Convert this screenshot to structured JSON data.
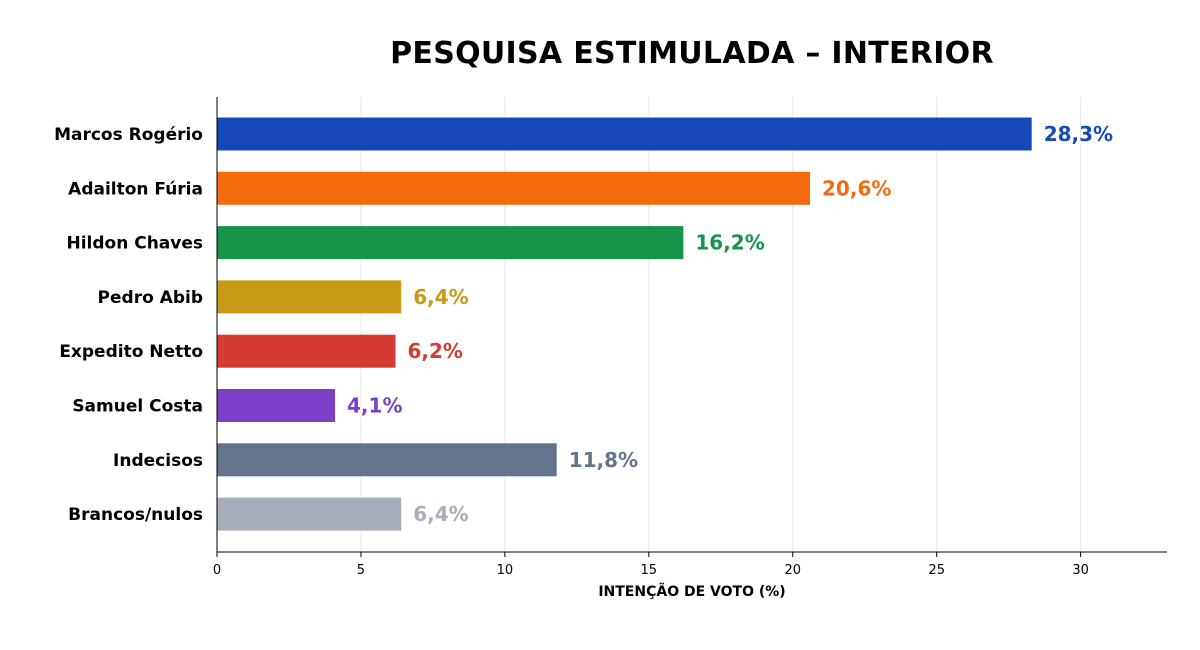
{
  "chart_data": {
    "type": "bar",
    "orientation": "horizontal",
    "title": "PESQUISA ESTIMULADA – INTERIOR",
    "xlabel": "INTENÇÃO DE VOTO (%)",
    "ylabel": "",
    "xlim": [
      0,
      33
    ],
    "xticks": [
      0,
      5,
      10,
      15,
      20,
      25,
      30
    ],
    "grid": "vertical",
    "categories": [
      "Marcos Rogério",
      "Adailton Fúria",
      "Hildon Chaves",
      "Pedro Abib",
      "Expedito Netto",
      "Samuel Costa",
      "Indecisos",
      "Brancos/nulos"
    ],
    "values": [
      28.3,
      20.6,
      16.2,
      6.4,
      6.2,
      4.1,
      11.8,
      6.4
    ],
    "value_labels": [
      "28,3%",
      "20,6%",
      "16,2%",
      "6,4%",
      "6,2%",
      "4,1%",
      "11,8%",
      "6,4%"
    ],
    "colors": [
      "#1849bb",
      "#f46a0c",
      "#16954a",
      "#c99a17",
      "#d63b31",
      "#7b3fc7",
      "#64748b",
      "#a8aeb9"
    ]
  }
}
